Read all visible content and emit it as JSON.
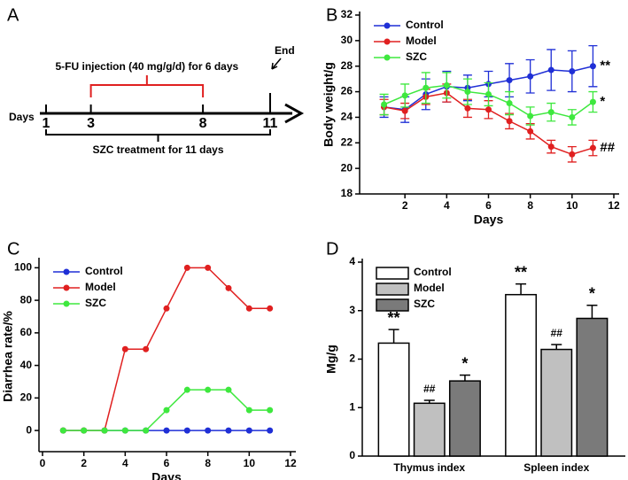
{
  "timeline": {
    "panel_label": "A",
    "days_label": "Days",
    "days": [
      1,
      3,
      8,
      11
    ],
    "injection": "5-FU injection (40 mg/g/d) for 6 days",
    "end": "End",
    "treatment": "SZC treatment for 11 days"
  },
  "chart_data": [
    {
      "panel_label": "B",
      "type": "line",
      "xlabel": "Days",
      "ylabel": "Body weight/g",
      "x": [
        1,
        2,
        3,
        4,
        5,
        6,
        7,
        8,
        9,
        10,
        11
      ],
      "xlim": [
        0,
        12
      ],
      "xticks": [
        2,
        4,
        6,
        8,
        10,
        12
      ],
      "ylim": [
        18,
        32
      ],
      "yticks": [
        18,
        20,
        22,
        24,
        26,
        28,
        30,
        32
      ],
      "legend": "upper left",
      "series": [
        {
          "name": "Control",
          "color": "#1f2fd6",
          "values": [
            24.8,
            24.6,
            25.8,
            26.4,
            26.3,
            26.6,
            26.9,
            27.2,
            27.7,
            27.6,
            28.0
          ],
          "errors": [
            0.8,
            1.0,
            1.2,
            1.2,
            1.0,
            1.0,
            1.3,
            1.3,
            1.6,
            1.6,
            1.6
          ],
          "end_label": "**"
        },
        {
          "name": "Model",
          "color": "#e02020",
          "values": [
            24.8,
            24.5,
            25.6,
            25.9,
            24.7,
            24.6,
            23.7,
            22.9,
            21.7,
            21.1,
            21.6
          ],
          "errors": [
            0.6,
            0.6,
            0.6,
            0.7,
            0.7,
            0.7,
            0.6,
            0.6,
            0.5,
            0.6,
            0.6
          ],
          "end_label": "##"
        },
        {
          "name": "SZC",
          "color": "#3ee83e",
          "values": [
            25.0,
            25.7,
            26.3,
            26.5,
            26.0,
            25.8,
            25.1,
            24.1,
            24.4,
            24.0,
            25.2
          ],
          "errors": [
            0.8,
            0.9,
            1.2,
            1.0,
            1.0,
            0.9,
            0.9,
            0.7,
            0.7,
            0.6,
            0.8
          ],
          "end_label": "*"
        }
      ]
    },
    {
      "panel_label": "C",
      "type": "line",
      "xlabel": "Days",
      "ylabel": "Diarrhea rate/%",
      "x": [
        1,
        2,
        3,
        4,
        5,
        6,
        7,
        8,
        9,
        10,
        11
      ],
      "xlim": [
        0,
        12
      ],
      "xticks": [
        0,
        2,
        4,
        6,
        8,
        10,
        12
      ],
      "ylim": [
        -13,
        104
      ],
      "yticks": [
        0,
        20,
        40,
        60,
        80,
        100
      ],
      "legend": "upper left",
      "series": [
        {
          "name": "Control",
          "color": "#1f2fd6",
          "values": [
            0,
            0,
            0,
            0,
            0,
            0,
            0,
            0,
            0,
            0,
            0
          ]
        },
        {
          "name": "Model",
          "color": "#e02020",
          "values": [
            0,
            0,
            0,
            50,
            50,
            75,
            100,
            100,
            87.5,
            75,
            75
          ]
        },
        {
          "name": "SZC",
          "color": "#3ee83e",
          "values": [
            0,
            0,
            0,
            0,
            0,
            12.5,
            25,
            25,
            25,
            12.5,
            12.5
          ]
        }
      ]
    },
    {
      "panel_label": "D",
      "type": "bar",
      "ylabel": "Mg/g",
      "categories": [
        "Thymus index",
        "Spleen index"
      ],
      "ylim": [
        0,
        4
      ],
      "yticks": [
        0,
        1,
        2,
        3,
        4
      ],
      "legend": "upper left",
      "series": [
        {
          "name": "Control",
          "color": "#ffffff",
          "values": [
            2.33,
            3.33
          ],
          "errors": [
            0.28,
            0.22
          ],
          "value_annotations": [
            "**",
            "**"
          ]
        },
        {
          "name": "Model",
          "color": "#c0c0c0",
          "values": [
            1.09,
            2.2
          ],
          "errors": [
            0.06,
            0.1
          ],
          "value_annotations": [
            "##",
            "##"
          ]
        },
        {
          "name": "SZC",
          "color": "#7a7a7a",
          "values": [
            1.55,
            2.84
          ],
          "errors": [
            0.12,
            0.27
          ],
          "value_annotations": [
            "*",
            "*"
          ]
        }
      ]
    }
  ]
}
